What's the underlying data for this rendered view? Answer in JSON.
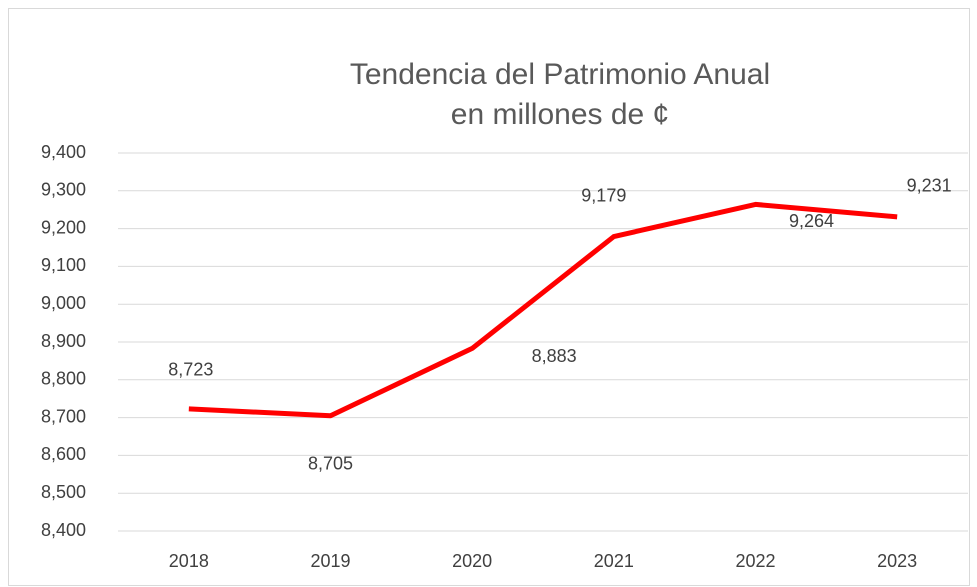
{
  "chart_data": {
    "type": "line",
    "title": [
      "Tendencia del Patrimonio Anual",
      "en millones de ¢"
    ],
    "categories": [
      "2018",
      "2019",
      "2020",
      "2021",
      "2022",
      "2023"
    ],
    "values": [
      8723,
      8705,
      8883,
      9179,
      9264,
      9231
    ],
    "value_labels": [
      "8,723",
      "8,705",
      "8,883",
      "9,179",
      "9,264",
      "9,231"
    ],
    "color": "#ff0000",
    "ylim": [
      8400,
      9400
    ],
    "yticks": [
      {
        "value": 8400,
        "label": "8,400"
      },
      {
        "value": 8500,
        "label": "8,500"
      },
      {
        "value": 8600,
        "label": "8,600"
      },
      {
        "value": 8700,
        "label": "8,700"
      },
      {
        "value": 8800,
        "label": "8,800"
      },
      {
        "value": 8900,
        "label": "8,900"
      },
      {
        "value": 9000,
        "label": "9,000"
      },
      {
        "value": 9100,
        "label": "9,100"
      },
      {
        "value": 9200,
        "label": "9,200"
      },
      {
        "value": 9300,
        "label": "9,300"
      },
      {
        "value": 9400,
        "label": "9,400"
      }
    ],
    "grid": true
  }
}
